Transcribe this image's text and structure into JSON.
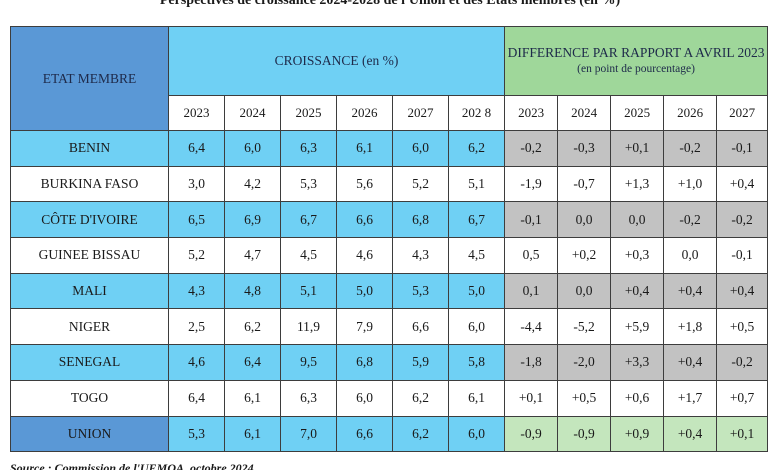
{
  "title": "Perspectives de croissance 2024-2028 de l'Union et des Etats membres (en %)",
  "headers": {
    "etat": "ETAT MEMBRE",
    "croissance": "CROISSANCE (en %)",
    "difference_line1": "DIFFERENCE PAR RAPPORT A AVRIL 2023",
    "difference_line2": "(en point de pourcentage)"
  },
  "growth_years": [
    "2023",
    "2024",
    "2025",
    "2026",
    "2027",
    "202 8"
  ],
  "diff_years": [
    "2023",
    "2024",
    "2025",
    "2026",
    "2027"
  ],
  "rows": [
    {
      "name": "BENIN",
      "growth": [
        "6,4",
        "6,0",
        "6,3",
        "6,1",
        "6,0",
        "6,2"
      ],
      "diff": [
        "-0,2",
        "-0,3",
        "+0,1",
        "-0,2",
        "-0,1"
      ]
    },
    {
      "name": "BURKINA FASO",
      "growth": [
        "3,0",
        "4,2",
        "5,3",
        "5,6",
        "5,2",
        "5,1"
      ],
      "diff": [
        "-1,9",
        "-0,7",
        "+1,3",
        "+1,0",
        "+0,4"
      ]
    },
    {
      "name": "CÔTE D'IVOIRE",
      "growth": [
        "6,5",
        "6,9",
        "6,7",
        "6,6",
        "6,8",
        "6,7"
      ],
      "diff": [
        "-0,1",
        "0,0",
        "0,0",
        "-0,2",
        "-0,2"
      ]
    },
    {
      "name": "GUINEE BISSAU",
      "growth": [
        "5,2",
        "4,7",
        "4,5",
        "4,6",
        "4,3",
        "4,5"
      ],
      "diff": [
        "0,5",
        "+0,2",
        "+0,3",
        "0,0",
        "-0,1"
      ]
    },
    {
      "name": "MALI",
      "growth": [
        "4,3",
        "4,8",
        "5,1",
        "5,0",
        "5,3",
        "5,0"
      ],
      "diff": [
        "0,1",
        "0,0",
        "+0,4",
        "+0,4",
        "+0,4"
      ]
    },
    {
      "name": "NIGER",
      "growth": [
        "2,5",
        "6,2",
        "11,9",
        "7,9",
        "6,6",
        "6,0"
      ],
      "diff": [
        "-4,4",
        "-5,2",
        "+5,9",
        "+1,8",
        "+0,5"
      ]
    },
    {
      "name": "SENEGAL",
      "growth": [
        "4,6",
        "6,4",
        "9,5",
        "6,8",
        "5,9",
        "5,8"
      ],
      "diff": [
        "-1,8",
        "-2,0",
        "+3,3",
        "+0,4",
        "-0,2"
      ]
    },
    {
      "name": "TOGO",
      "growth": [
        "6,4",
        "6,1",
        "6,3",
        "6,0",
        "6,2",
        "6,1"
      ],
      "diff": [
        "+0,1",
        "+0,5",
        "+0,6",
        "+1,7",
        "+0,7"
      ]
    },
    {
      "name": "UNION",
      "growth": [
        "5,3",
        "6,1",
        "7,0",
        "6,6",
        "6,2",
        "6,0"
      ],
      "diff": [
        "-0,9",
        "-0,9",
        "+0,9",
        "+0,4",
        "+0,1"
      ]
    }
  ],
  "source": "Source : Commission de l'UEMOA, octobre 2024",
  "colors": {
    "etat_header": "#5a98d6",
    "growth_highlight": "#6fd0f4",
    "diff_header": "#9fd79a",
    "diff_highlight": "#c2c2c2",
    "union_diff": "#c4e6bd"
  }
}
